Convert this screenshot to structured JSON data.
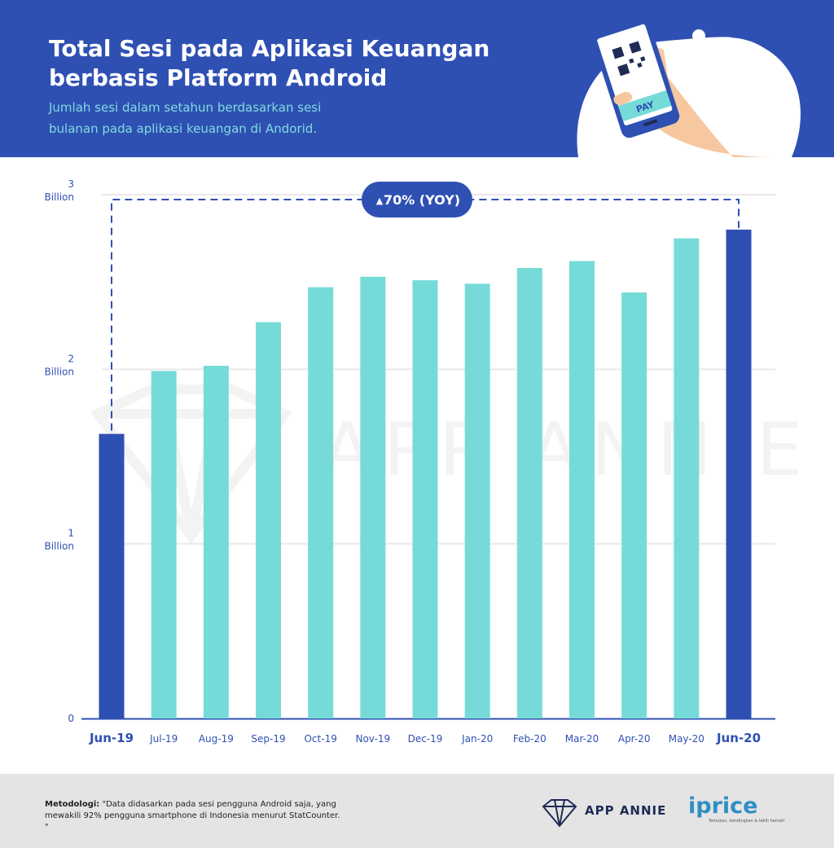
{
  "header": {
    "title_line1": "Total Sesi pada Aplikasi Keuangan",
    "title_line2": "berbasis Platform Android",
    "subtitle_line1": "Jumlah sesi dalam setahun berdasarkan sesi",
    "subtitle_line2": "bulanan pada aplikasi keuangan di Andorid.",
    "phone_label": "PAY"
  },
  "chart_data": {
    "type": "bar",
    "title": "Total Sesi pada Aplikasi Keuangan berbasis Platform Android",
    "categories": [
      "Jun-19",
      "Jul-19",
      "Aug-19",
      "Sep-19",
      "Oct-19",
      "Nov-19",
      "Dec-19",
      "Jan-20",
      "Feb-20",
      "Mar-20",
      "Apr-20",
      "May-20",
      "Jun-20"
    ],
    "values": [
      1.63,
      1.99,
      2.02,
      2.27,
      2.47,
      2.53,
      2.51,
      2.49,
      2.58,
      2.62,
      2.44,
      2.75,
      2.8
    ],
    "highlight": [
      true,
      false,
      false,
      false,
      false,
      false,
      false,
      false,
      false,
      false,
      false,
      false,
      true
    ],
    "unit": "Billion",
    "ylim": [
      0,
      3
    ],
    "yticks": [
      {
        "value": 0,
        "line1": "0",
        "line2": ""
      },
      {
        "value": 1,
        "line1": "1",
        "line2": "Billion"
      },
      {
        "value": 2,
        "line1": "2",
        "line2": "Billion"
      },
      {
        "value": 3,
        "line1": "3",
        "line2": "Billion"
      }
    ],
    "annotation": "70% (YOY)",
    "annotation_marker": "▲",
    "watermark": "APP ANNIE",
    "colors": {
      "highlight": "#2f50b3",
      "normal": "#76dbd8",
      "axis": "#2f50b3",
      "grid": "#e9e9e9",
      "tick_text": "#2f50b3"
    }
  },
  "footer": {
    "methodology_label": "Metodologi:",
    "methodology_text": " \"Data didasarkan pada sesi pengguna Android saja, yang mewakili 92% pengguna smartphone di Indonesia menurut StatCounter.",
    "methodology_end": "\"",
    "app_annie_logo": "APP ANNIE",
    "iprice_logo": "iprice",
    "iprice_tagline": "Temukan, bandingkan & lebih hemat!"
  }
}
